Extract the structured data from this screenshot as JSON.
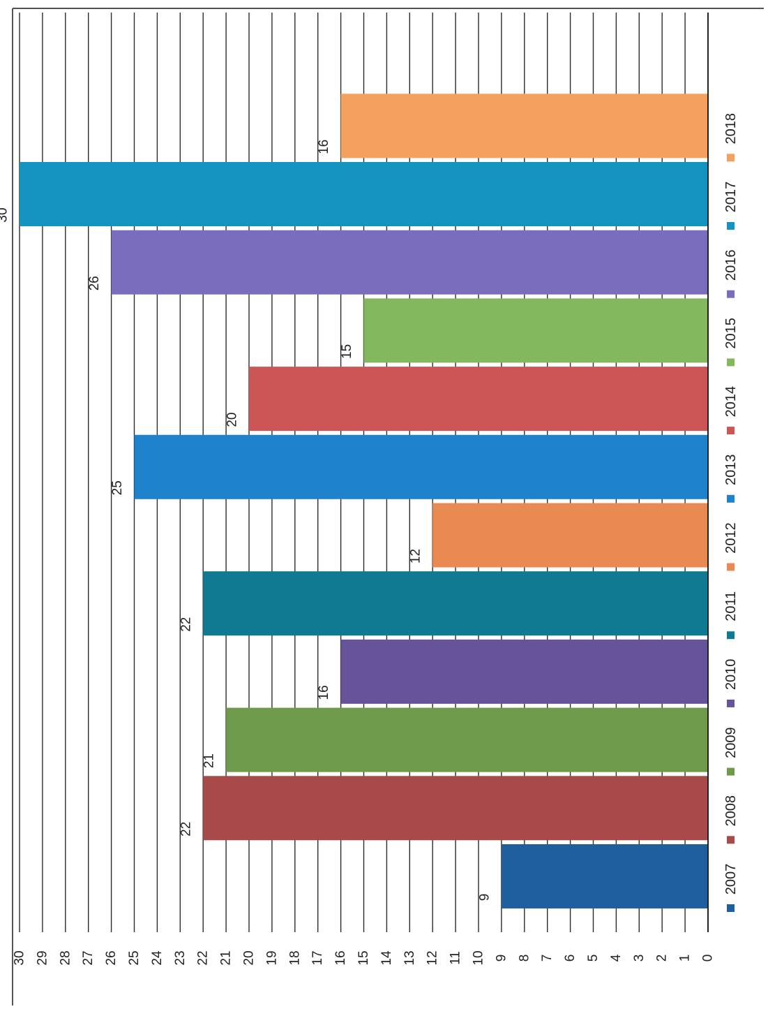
{
  "chart_data": {
    "type": "bar",
    "orientation": "rotated-90",
    "title": "",
    "xlabel": "",
    "ylabel": "",
    "ylim": [
      0,
      30
    ],
    "y_ticks": [
      "0",
      "1",
      "2",
      "3",
      "4",
      "5",
      "6",
      "7",
      "8",
      "9",
      "10",
      "11",
      "12",
      "13",
      "14",
      "15",
      "16",
      "17",
      "18",
      "19",
      "20",
      "21",
      "22",
      "23",
      "24",
      "25",
      "26",
      "27",
      "28",
      "29",
      "30"
    ],
    "grid": true,
    "legend_position": "bottom",
    "series": [
      {
        "name": "2007",
        "value": 9,
        "color": "#1F5FA0"
      },
      {
        "name": "2008",
        "value": 22,
        "color": "#A84A4A"
      },
      {
        "name": "2009",
        "value": 21,
        "color": "#6E9A4C"
      },
      {
        "name": "2010",
        "value": 16,
        "color": "#67539A"
      },
      {
        "name": "2011",
        "value": 22,
        "color": "#0F7A92"
      },
      {
        "name": "2012",
        "value": 12,
        "color": "#E88A52"
      },
      {
        "name": "2013",
        "value": 25,
        "color": "#1E83CC"
      },
      {
        "name": "2014",
        "value": 20,
        "color": "#CC5656"
      },
      {
        "name": "2015",
        "value": 15,
        "color": "#84B85E"
      },
      {
        "name": "2016",
        "value": 26,
        "color": "#7A6DBE"
      },
      {
        "name": "2017",
        "value": 30,
        "color": "#1394C0"
      },
      {
        "name": "2018",
        "value": 16,
        "color": "#F4A05F"
      }
    ]
  }
}
